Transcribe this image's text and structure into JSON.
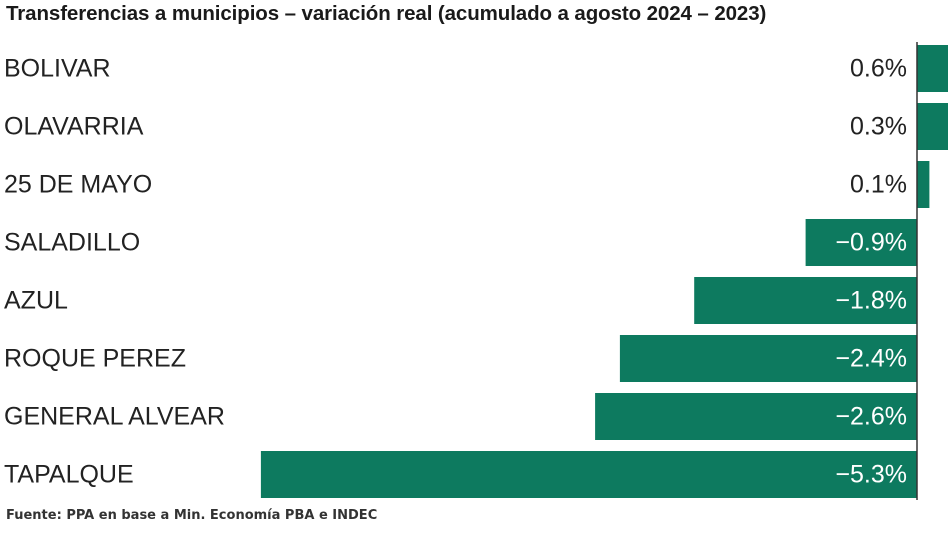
{
  "chart_data": {
    "type": "bar",
    "orientation": "horizontal",
    "title": "Transferencias a municipios – variación real (acumulado a agosto 2024 – 2023)",
    "categories": [
      "BOLIVAR",
      "OLAVARRIA",
      "25 DE MAYO",
      "SALADILLO",
      "AZUL",
      "ROQUE PEREZ",
      "GENERAL ALVEAR",
      "TAPALQUE"
    ],
    "values": [
      0.6,
      0.3,
      0.1,
      -0.9,
      -1.8,
      -2.4,
      -2.6,
      -5.3
    ],
    "value_labels": [
      "0.6%",
      "0.3%",
      "0.1%",
      "−0.9%",
      "−1.8%",
      "−2.4%",
      "−2.6%",
      "−5.3%"
    ],
    "bar_color": "#0d7a5f",
    "label_color_on_bar": "#ffffff",
    "label_color_off_bar": "#222222",
    "xlabel": "",
    "ylabel": "",
    "grid": false,
    "legend": false
  },
  "source": "Fuente: PPA en base a Min. Economía PBA e INDEC"
}
